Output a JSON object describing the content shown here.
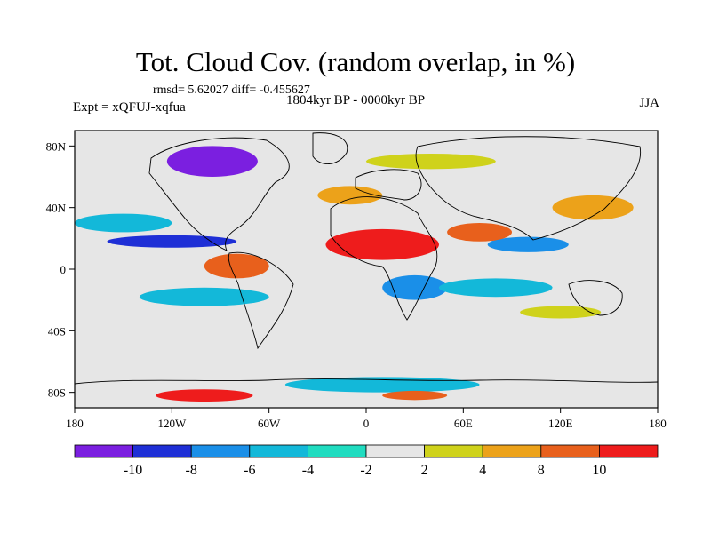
{
  "title": "Tot. Cloud Cov. (random overlap, in %)",
  "stats": "rmsd= 5.62027 diff= -0.455627",
  "period": "1804kyr BP - 0000kyr BP",
  "experiment": "Expt = xQFUJ-xqfua",
  "season": "JJA",
  "map": {
    "x_ticks": [
      "180",
      "120W",
      "60W",
      "0",
      "60E",
      "120E",
      "180"
    ],
    "y_ticks": [
      "80N",
      "40N",
      "0",
      "40S",
      "80S"
    ],
    "background_color": "#e6e6e6",
    "fields": [
      {
        "kind": "negative",
        "level": "-10",
        "color": "#7b1fe0",
        "lon": -95,
        "lat": 70,
        "rlon": 28,
        "rlat": 10
      },
      {
        "kind": "negative",
        "level": "-8",
        "color": "#1e2fd6",
        "lon": -120,
        "lat": 18,
        "rlon": 40,
        "rlat": 4
      },
      {
        "kind": "negative",
        "level": "-6",
        "color": "#1a8fe8",
        "lon": 100,
        "lat": 16,
        "rlon": 25,
        "rlat": 5
      },
      {
        "kind": "negative",
        "level": "-4",
        "color": "#13b8d9",
        "lon": -150,
        "lat": 30,
        "rlon": 30,
        "rlat": 6
      },
      {
        "kind": "negative",
        "level": "-6",
        "color": "#1a8fe8",
        "lon": 30,
        "lat": -12,
        "rlon": 20,
        "rlat": 8
      },
      {
        "kind": "negative",
        "level": "-4",
        "color": "#13b8d9",
        "lon": 80,
        "lat": -12,
        "rlon": 35,
        "rlat": 6
      },
      {
        "kind": "negative",
        "level": "-4",
        "color": "#13b8d9",
        "lon": -100,
        "lat": -18,
        "rlon": 40,
        "rlat": 6
      },
      {
        "kind": "negative",
        "level": "-4",
        "color": "#13b8d9",
        "lon": 10,
        "lat": -75,
        "rlon": 60,
        "rlat": 5
      },
      {
        "kind": "positive",
        "level": "10",
        "color": "#ee1c1c",
        "lon": 10,
        "lat": 16,
        "rlon": 35,
        "rlat": 10
      },
      {
        "kind": "positive",
        "level": "8",
        "color": "#e8601c",
        "lon": -80,
        "lat": 2,
        "rlon": 20,
        "rlat": 8
      },
      {
        "kind": "positive",
        "level": "8",
        "color": "#e8601c",
        "lon": 70,
        "lat": 24,
        "rlon": 20,
        "rlat": 6
      },
      {
        "kind": "positive",
        "level": "4",
        "color": "#eca21a",
        "lon": 140,
        "lat": 40,
        "rlon": 25,
        "rlat": 8
      },
      {
        "kind": "positive",
        "level": "4",
        "color": "#eca21a",
        "lon": -10,
        "lat": 48,
        "rlon": 20,
        "rlat": 6
      },
      {
        "kind": "positive",
        "level": "2",
        "color": "#cfd21b",
        "lon": 40,
        "lat": 70,
        "rlon": 40,
        "rlat": 5
      },
      {
        "kind": "positive",
        "level": "2",
        "color": "#cfd21b",
        "lon": 120,
        "lat": -28,
        "rlon": 25,
        "rlat": 4
      },
      {
        "kind": "positive",
        "level": "10",
        "color": "#ee1c1c",
        "lon": -100,
        "lat": -82,
        "rlon": 30,
        "rlat": 4
      },
      {
        "kind": "positive",
        "level": "8",
        "color": "#e8601c",
        "lon": 30,
        "lat": -82,
        "rlon": 20,
        "rlat": 3
      }
    ]
  },
  "colorbar": {
    "colors": [
      "#7b1fe0",
      "#1e2fd6",
      "#1a8fe8",
      "#13b8d9",
      "#20dcc0",
      "#e6e6e6",
      "#cfd21b",
      "#eca21a",
      "#e8601c",
      "#ee1c1c"
    ],
    "labels": [
      "-10",
      "-8",
      "-6",
      "-4",
      "-2",
      "2",
      "4",
      "8",
      "10"
    ]
  }
}
